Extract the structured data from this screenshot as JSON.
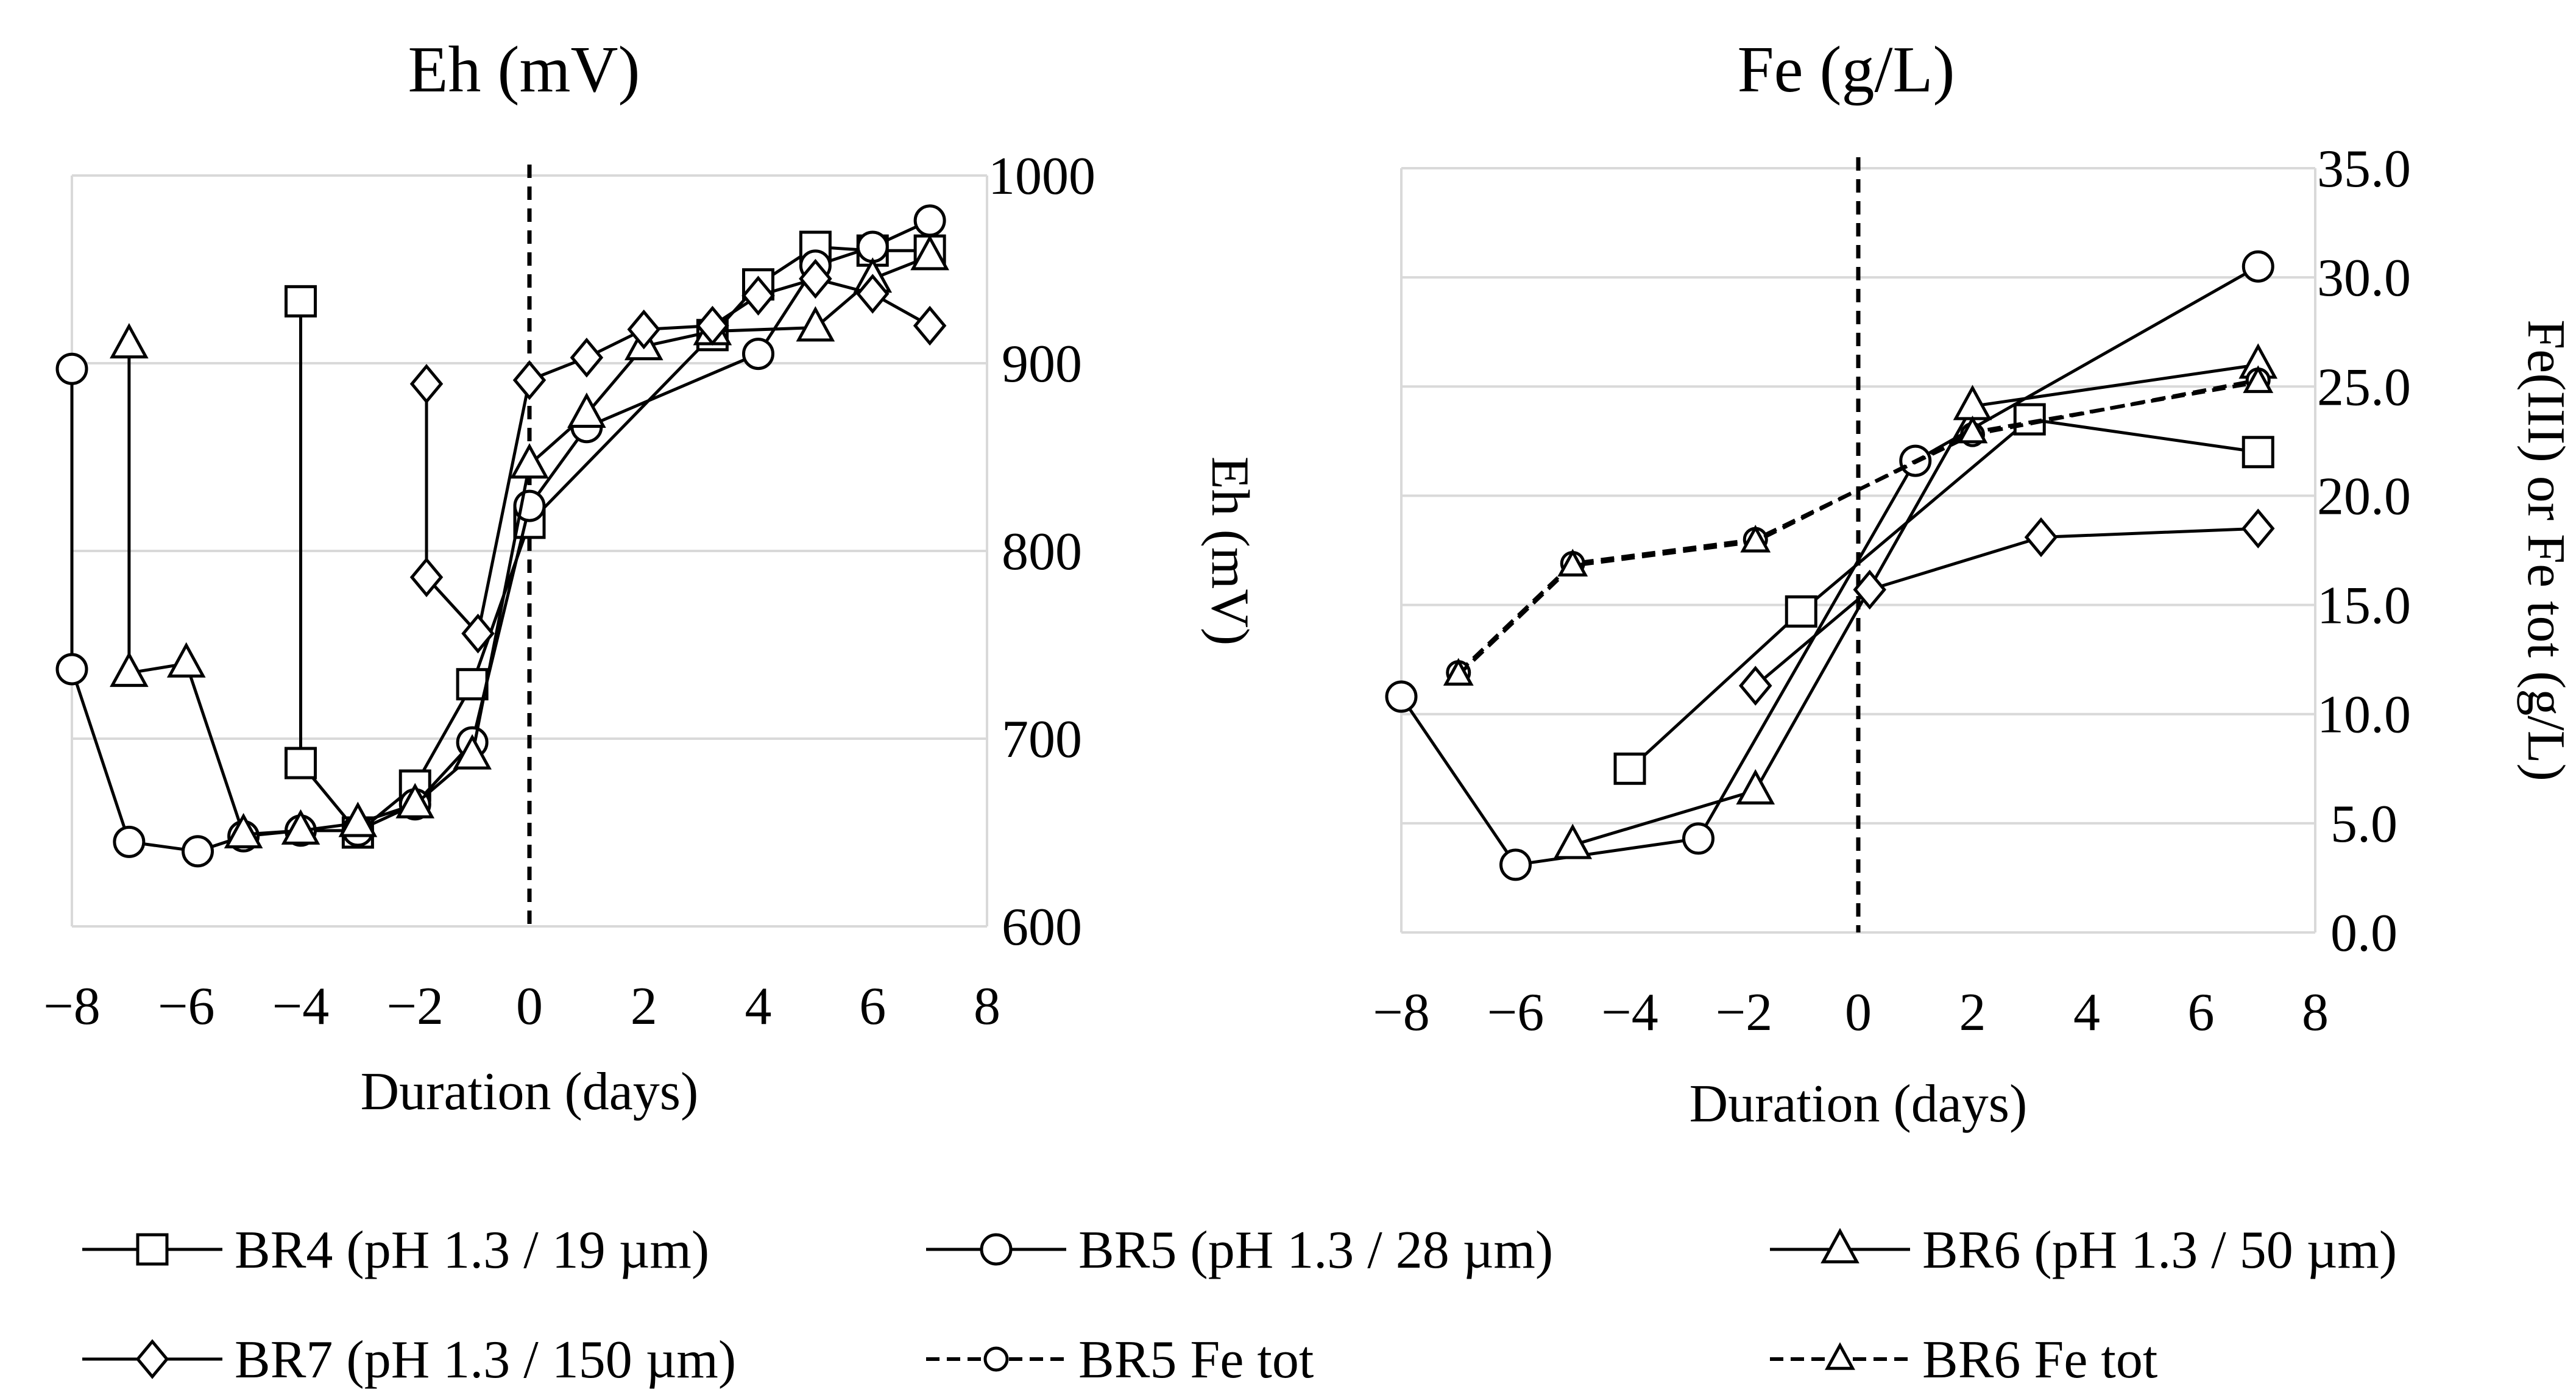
{
  "chart_data": [
    {
      "id": "eh",
      "type": "line",
      "title": "Eh (mV)",
      "xlabel": "Duration (days)",
      "ylabel": "Eh (mV)",
      "xlim": [
        -8,
        8
      ],
      "ylim": [
        600,
        1000
      ],
      "xticks": [
        -8,
        -6,
        -4,
        -2,
        0,
        2,
        4,
        6,
        8
      ],
      "xtick_labels": [
        "−8",
        "−6",
        "−4",
        "−2",
        "0",
        "2",
        "4",
        "6",
        "8"
      ],
      "yticks": [
        600,
        700,
        800,
        900,
        1000
      ],
      "ytick_labels": [
        "600",
        "700",
        "800",
        "900",
        "1000"
      ],
      "grid": true,
      "y_axis_side": "right",
      "vertical_line_x": 0,
      "series": [
        {
          "name": "BR4 (pH 1.3 / 19 µm)",
          "marker": "square",
          "line": "solid",
          "x": [
            -4,
            -4,
            -3,
            -2,
            -1,
            0,
            3.2,
            4,
            5,
            6,
            7
          ],
          "y": [
            933,
            687,
            650,
            675,
            729,
            815,
            915,
            942,
            962,
            960,
            960
          ]
        },
        {
          "name": "BR5 (pH 1.3 / 28 µm)",
          "marker": "circle",
          "line": "solid",
          "x": [
            -8,
            -8,
            -7,
            -5.8,
            -5,
            -4,
            -3,
            -2,
            -1,
            0,
            1,
            4,
            5,
            6,
            7
          ],
          "y": [
            897,
            737,
            645,
            640,
            648,
            651,
            651,
            665,
            698,
            824,
            866,
            905,
            952,
            962,
            976
          ]
        },
        {
          "name": "BR6 (pH 1.3 / 50 µm)",
          "marker": "triangle",
          "line": "solid",
          "x": [
            -7,
            -7,
            -6,
            -5,
            -4,
            -3,
            -2,
            -1,
            0,
            1,
            2,
            3.2,
            5,
            6,
            7
          ],
          "y": [
            910,
            735,
            740,
            649,
            651,
            655,
            665,
            691,
            846,
            873,
            909,
            917,
            919,
            945,
            957
          ]
        },
        {
          "name": "BR7 (pH 1.3 / 150 µm)",
          "marker": "diamond",
          "line": "solid",
          "x": [
            -1.8,
            -1.8,
            -0.9,
            0,
            1,
            2,
            3.2,
            4,
            5,
            6,
            7
          ],
          "y": [
            889,
            786,
            756,
            891,
            903,
            918,
            920,
            936,
            945,
            937,
            920
          ]
        }
      ]
    },
    {
      "id": "fe",
      "type": "line",
      "title": "Fe (g/L)",
      "xlabel": "Duration (days)",
      "ylabel": "Fe(III) or Fe tot (g/L)",
      "xlim": [
        -8,
        8
      ],
      "ylim": [
        0,
        35
      ],
      "xticks": [
        -8,
        -6,
        -4,
        -2,
        0,
        2,
        4,
        6,
        8
      ],
      "xtick_labels": [
        "−8",
        "−6",
        "−4",
        "−2",
        "0",
        "2",
        "4",
        "6",
        "8"
      ],
      "yticks": [
        0,
        5,
        10,
        15,
        20,
        25,
        30,
        35
      ],
      "ytick_labels": [
        "0.0",
        "5.0",
        "10.0",
        "15.0",
        "20.0",
        "25.0",
        "30.0",
        "35.0"
      ],
      "grid": true,
      "y_axis_side": "right",
      "vertical_line_x": 0,
      "series": [
        {
          "name": "BR4 (pH 1.3 / 19 µm)",
          "marker": "square",
          "line": "solid",
          "x": [
            -4,
            -1,
            3,
            7
          ],
          "y": [
            7.5,
            14.7,
            23.5,
            22.0
          ]
        },
        {
          "name": "BR5 (pH 1.3 / 28 µm)",
          "marker": "circle",
          "line": "solid",
          "x": [
            -8,
            -6,
            -2.8,
            1,
            7
          ],
          "y": [
            10.8,
            3.1,
            4.3,
            21.6,
            30.5
          ]
        },
        {
          "name": "BR6 (pH 1.3 / 50 µm)",
          "marker": "triangle",
          "line": "solid",
          "x": [
            -5,
            -1.8,
            2,
            7
          ],
          "y": [
            4.0,
            6.5,
            24.1,
            26.0
          ]
        },
        {
          "name": "BR7 (pH 1.3 / 150 µm)",
          "marker": "diamond",
          "line": "solid",
          "x": [
            -1.8,
            0.2,
            3.2,
            7
          ],
          "y": [
            11.3,
            15.7,
            18.1,
            18.5
          ]
        },
        {
          "name": "BR5 Fe tot",
          "marker": "circle",
          "line": "dashed",
          "x": [
            -7,
            -5,
            -1.8,
            2,
            7
          ],
          "y": [
            11.9,
            16.9,
            18.0,
            22.8,
            25.3
          ]
        },
        {
          "name": "BR6 Fe tot",
          "marker": "triangle",
          "line": "dashed",
          "x": [
            -7,
            -5,
            -1.8,
            2,
            7
          ],
          "y": [
            11.8,
            16.8,
            17.9,
            22.9,
            25.2
          ]
        }
      ]
    }
  ],
  "legend": {
    "placement": "bottom",
    "entries": [
      {
        "label": "BR4 (pH 1.3 / 19 µm)",
        "marker": "square",
        "line": "solid"
      },
      {
        "label": "BR5 (pH 1.3 / 28 µm)",
        "marker": "circle",
        "line": "solid"
      },
      {
        "label": "BR6 (pH 1.3 / 50 µm)",
        "marker": "triangle",
        "line": "solid"
      },
      {
        "label": "BR7 (pH 1.3 / 150 µm)",
        "marker": "diamond",
        "line": "solid"
      },
      {
        "label": "BR5 Fe tot",
        "marker": "circle",
        "line": "dashed"
      },
      {
        "label": "BR6 Fe tot",
        "marker": "triangle",
        "line": "dashed"
      }
    ]
  }
}
